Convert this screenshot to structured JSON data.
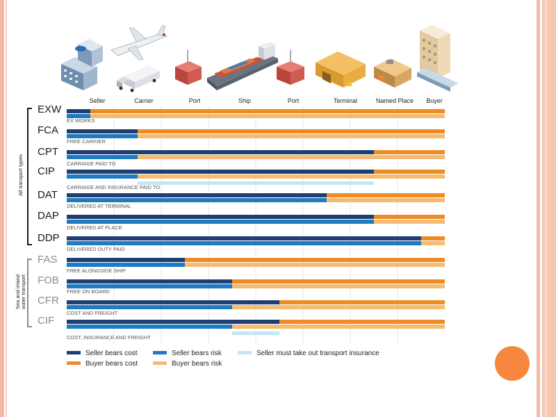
{
  "colors": {
    "seller_cost": "#1f3f73",
    "seller_risk": "#1f7bc1",
    "buyer_cost": "#ed8b25",
    "buyer_risk": "#f6bb72",
    "insurance": "#c3e6f5",
    "slide_accent": "#f7873f"
  },
  "locations": [
    {
      "label": "Seller",
      "icon": "office-building-icon"
    },
    {
      "label": "Carrier",
      "icon": "airplane-truck-icon"
    },
    {
      "label": "Port",
      "icon": "container-icon"
    },
    {
      "label": "Ship",
      "icon": "cargo-ship-icon"
    },
    {
      "label": "Port",
      "icon": "container-icon"
    },
    {
      "label": "Terminal",
      "icon": "warehouse-icon"
    },
    {
      "label": "Named Place",
      "icon": "building-icon"
    },
    {
      "label": "Buyer",
      "icon": "apartment-icon"
    }
  ],
  "groups": [
    {
      "label": "All transport types",
      "terms": [
        "EXW",
        "FCA",
        "CPT",
        "CIP",
        "DAT",
        "DAP",
        "DDP"
      ]
    },
    {
      "label_lines": [
        "Sea and inland",
        "water transport"
      ],
      "terms": [
        "FAS",
        "FOB",
        "CFR",
        "CIF"
      ]
    }
  ],
  "terms": [
    {
      "code": "EXW",
      "name": "EX WORKS",
      "cost_split": 0.5,
      "risk_split": 0.5,
      "insurance": null
    },
    {
      "code": "FCA",
      "name": "FREE CARRIER",
      "cost_split": 1.5,
      "risk_split": 1.5,
      "insurance": null
    },
    {
      "code": "CPT",
      "name": "CARRIAGE PAID TO",
      "cost_split": 6.5,
      "risk_split": 1.5,
      "insurance": null
    },
    {
      "code": "CIP",
      "name": "CARRIAGE AND INSURANCE PAID TO",
      "cost_split": 6.5,
      "risk_split": 1.5,
      "insurance": [
        1.5,
        6.5
      ]
    },
    {
      "code": "DAT",
      "name": "DELIVERED AT TERMINAL",
      "cost_split": 5.5,
      "risk_split": 5.5,
      "insurance": null
    },
    {
      "code": "DAP",
      "name": "DELIVERED AT PLACE",
      "cost_split": 6.5,
      "risk_split": 6.5,
      "insurance": null
    },
    {
      "code": "DDP",
      "name": "DELIVERED DUTY PAID",
      "cost_split": 7.5,
      "risk_split": 7.5,
      "insurance": null
    },
    {
      "code": "FAS",
      "name": "FREE ALONGSIDE SHIP",
      "cost_split": 2.5,
      "risk_split": 2.5,
      "insurance": null
    },
    {
      "code": "FOB",
      "name": "FREE ON BOARD",
      "cost_split": 3.5,
      "risk_split": 3.5,
      "insurance": null
    },
    {
      "code": "CFR",
      "name": "COST AND FREIGHT",
      "cost_split": 4.5,
      "risk_split": 3.5,
      "insurance": null
    },
    {
      "code": "CIF",
      "name": "COST, INSURANCE AND FREIGHT",
      "cost_split": 4.5,
      "risk_split": 3.5,
      "insurance": [
        3.5,
        4.5
      ]
    }
  ],
  "legend": {
    "seller_cost": "Seller bears cost",
    "buyer_cost": "Buyer bears cost",
    "seller_risk": "Seller bears risk",
    "buyer_risk": "Buyer bears risk",
    "insurance": "Seller must take out transport insurance"
  }
}
